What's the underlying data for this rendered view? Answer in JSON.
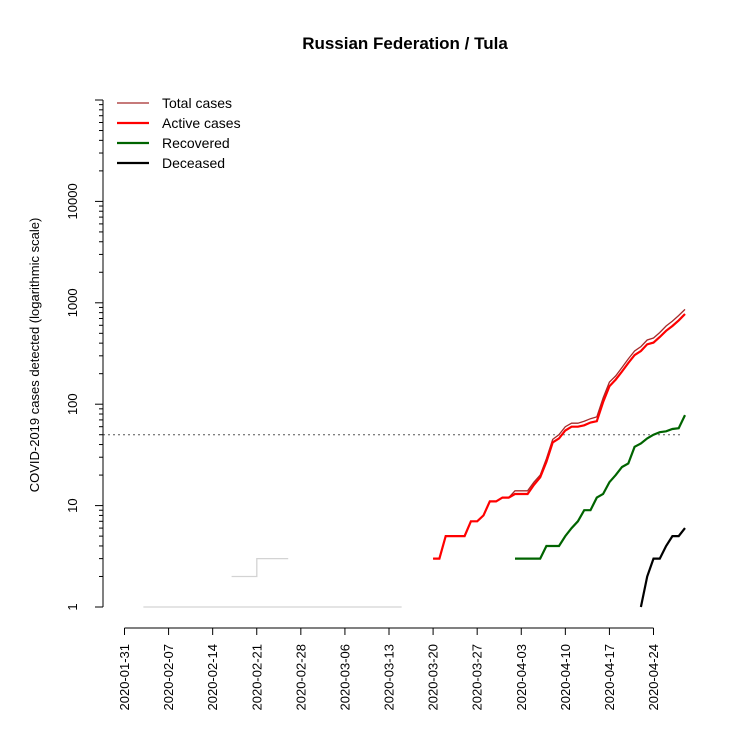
{
  "chart_data": {
    "type": "line",
    "title": "Russian Federation / Tula",
    "ylabel": "COVID-2019 cases detected (logarithmic scale)",
    "xlabel": "",
    "y_scale": "log10",
    "ylim": [
      1,
      100000
    ],
    "xlim": [
      "2020-01-31",
      "2020-04-29"
    ],
    "y_ticks": [
      1,
      10,
      100,
      1000,
      10000
    ],
    "y_tick_labels": [
      "1",
      "10",
      "100",
      "1000",
      "10000"
    ],
    "x_ticks": [
      "2020-01-31",
      "2020-02-07",
      "2020-02-14",
      "2020-02-21",
      "2020-02-28",
      "2020-03-06",
      "2020-03-13",
      "2020-03-20",
      "2020-03-27",
      "2020-04-03",
      "2020-04-10",
      "2020-04-17",
      "2020-04-24"
    ],
    "threshold_line": 50,
    "legend": {
      "position": "top-left",
      "entries": [
        {
          "label": "Total cases",
          "color": "#a52a2a"
        },
        {
          "label": "Active cases",
          "color": "#ff0000"
        },
        {
          "label": "Recovered",
          "color": "#006400"
        },
        {
          "label": "Deceased",
          "color": "#000000"
        }
      ]
    },
    "series": [
      {
        "name": "Total cases",
        "color": "#a52a2a",
        "x": [
          "2020-03-20",
          "2020-03-21",
          "2020-03-22",
          "2020-03-23",
          "2020-03-24",
          "2020-03-25",
          "2020-03-26",
          "2020-03-27",
          "2020-03-28",
          "2020-03-29",
          "2020-03-30",
          "2020-03-31",
          "2020-04-01",
          "2020-04-02",
          "2020-04-03",
          "2020-04-04",
          "2020-04-05",
          "2020-04-06",
          "2020-04-07",
          "2020-04-08",
          "2020-04-09",
          "2020-04-10",
          "2020-04-11",
          "2020-04-12",
          "2020-04-13",
          "2020-04-14",
          "2020-04-15",
          "2020-04-16",
          "2020-04-17",
          "2020-04-18",
          "2020-04-19",
          "2020-04-20",
          "2020-04-21",
          "2020-04-22",
          "2020-04-23",
          "2020-04-24",
          "2020-04-25",
          "2020-04-26",
          "2020-04-27",
          "2020-04-28",
          "2020-04-29"
        ],
        "values": [
          3,
          3,
          5,
          5,
          5,
          5,
          7,
          7,
          8,
          11,
          11,
          12,
          12,
          14,
          14,
          14,
          17,
          20,
          29,
          45,
          50,
          60,
          65,
          65,
          68,
          72,
          75,
          115,
          165,
          190,
          230,
          280,
          335,
          370,
          430,
          450,
          510,
          590,
          660,
          750,
          860
        ]
      },
      {
        "name": "Active cases",
        "color": "#ff0000",
        "x": [
          "2020-03-20",
          "2020-03-21",
          "2020-03-22",
          "2020-03-23",
          "2020-03-24",
          "2020-03-25",
          "2020-03-26",
          "2020-03-27",
          "2020-03-28",
          "2020-03-29",
          "2020-03-30",
          "2020-03-31",
          "2020-04-01",
          "2020-04-02",
          "2020-04-03",
          "2020-04-04",
          "2020-04-05",
          "2020-04-06",
          "2020-04-07",
          "2020-04-08",
          "2020-04-09",
          "2020-04-10",
          "2020-04-11",
          "2020-04-12",
          "2020-04-13",
          "2020-04-14",
          "2020-04-15",
          "2020-04-16",
          "2020-04-17",
          "2020-04-18",
          "2020-04-19",
          "2020-04-20",
          "2020-04-21",
          "2020-04-22",
          "2020-04-23",
          "2020-04-24",
          "2020-04-25",
          "2020-04-26",
          "2020-04-27",
          "2020-04-28",
          "2020-04-29"
        ],
        "values": [
          3,
          3,
          5,
          5,
          5,
          5,
          7,
          7,
          8,
          11,
          11,
          12,
          12,
          13,
          13,
          13,
          16,
          19,
          27,
          42,
          46,
          55,
          60,
          60,
          62,
          66,
          68,
          105,
          150,
          175,
          210,
          255,
          305,
          335,
          390,
          405,
          460,
          530,
          590,
          670,
          775
        ]
      },
      {
        "name": "Recovered",
        "color": "#006400",
        "x": [
          "2020-04-02",
          "2020-04-03",
          "2020-04-04",
          "2020-04-05",
          "2020-04-06",
          "2020-04-07",
          "2020-04-08",
          "2020-04-09",
          "2020-04-10",
          "2020-04-11",
          "2020-04-12",
          "2020-04-13",
          "2020-04-14",
          "2020-04-15",
          "2020-04-16",
          "2020-04-17",
          "2020-04-18",
          "2020-04-19",
          "2020-04-20",
          "2020-04-21",
          "2020-04-22",
          "2020-04-23",
          "2020-04-24",
          "2020-04-25",
          "2020-04-26",
          "2020-04-27",
          "2020-04-28",
          "2020-04-29"
        ],
        "values": [
          3,
          3,
          3,
          3,
          3,
          4,
          4,
          4,
          5,
          6,
          7,
          9,
          9,
          12,
          13,
          17,
          20,
          24,
          26,
          38,
          41,
          46,
          50,
          53,
          54,
          57,
          58,
          78
        ]
      },
      {
        "name": "Deceased",
        "color": "#000000",
        "x": [
          "2020-04-22",
          "2020-04-23",
          "2020-04-24",
          "2020-04-25",
          "2020-04-26",
          "2020-04-27",
          "2020-04-28",
          "2020-04-29"
        ],
        "values": [
          1,
          2,
          3,
          3,
          4,
          5,
          5,
          6
        ]
      }
    ],
    "background_series_color": "#d3d3d3"
  }
}
